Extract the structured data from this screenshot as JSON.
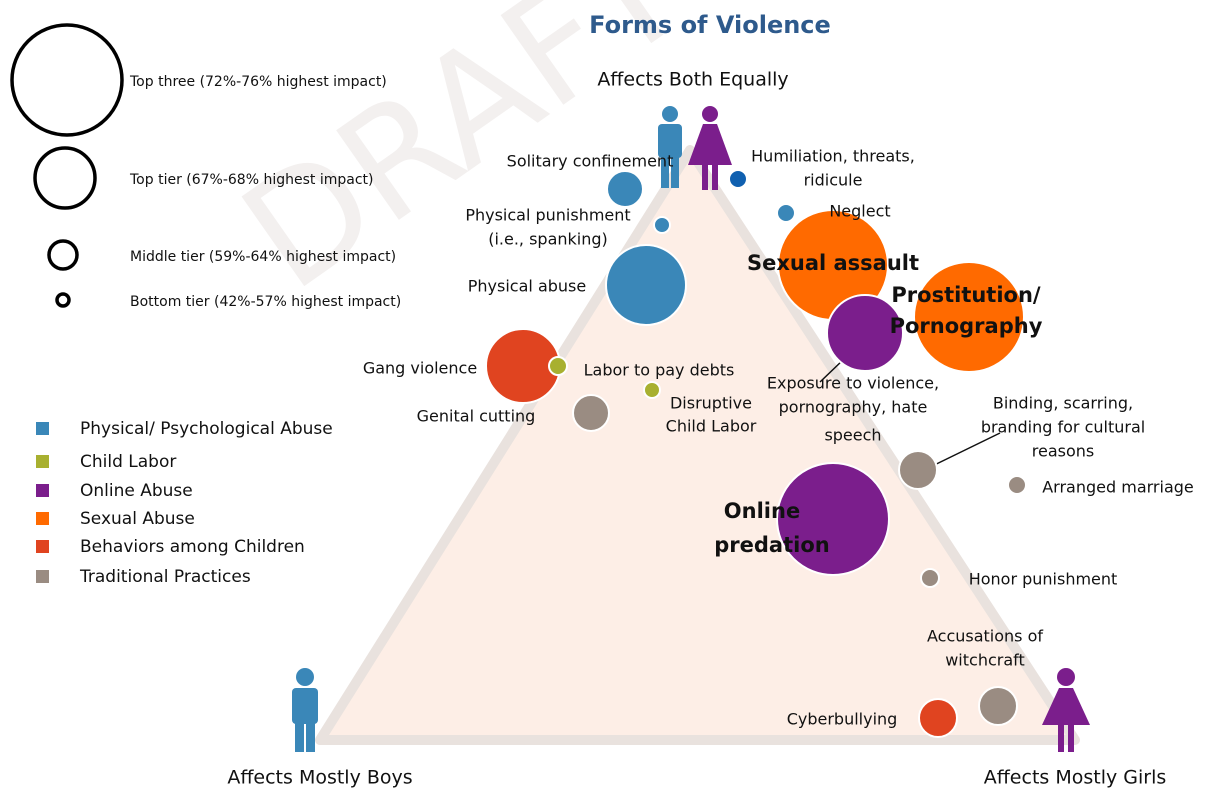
{
  "watermark": "DRAFT",
  "title": "Forms of Violence",
  "corners": {
    "top": "Affects Both Equally",
    "left": "Affects Mostly Boys",
    "right": "Affects Mostly Girls"
  },
  "size_legend": [
    "Top three (72%-76% highest impact)",
    "Top tier (67%-68% highest impact)",
    "Middle tier (59%-64% highest impact)",
    "Bottom tier (42%-57% highest impact)"
  ],
  "category_legend": [
    {
      "name": "Physical/ Psychological Abuse",
      "color": "#3a87b8"
    },
    {
      "name": "Child Labor",
      "color": "#a8b030"
    },
    {
      "name": "Online Abuse",
      "color": "#7b1e8c"
    },
    {
      "name": "Sexual Abuse",
      "color": "#ff6a00"
    },
    {
      "name": "Behaviors among Children",
      "color": "#e04420"
    },
    {
      "name": "Traditional Practices",
      "color": "#9a8c82"
    }
  ],
  "bubbles": [
    {
      "label": [
        "Solitary confinement"
      ]
    },
    {
      "label": [
        "Humiliation, threats,",
        "ridicule"
      ]
    },
    {
      "label": [
        "Physical punishment",
        "(i.e., spanking)"
      ]
    },
    {
      "label": [
        "Neglect"
      ]
    },
    {
      "label": [
        "Physical abuse"
      ]
    },
    {
      "label": [
        "Sexual assault"
      ]
    },
    {
      "label": [
        "Prostitution/",
        "Pornography"
      ]
    },
    {
      "label": [
        "Exposure to violence,",
        "pornography, hate",
        "speech"
      ]
    },
    {
      "label": [
        "Gang violence"
      ]
    },
    {
      "label": [
        "Labor to pay debts"
      ]
    },
    {
      "label": [
        "Disruptive",
        "Child Labor"
      ]
    },
    {
      "label": [
        "Genital cutting"
      ]
    },
    {
      "label": [
        "Binding, scarring,",
        "branding for cultural",
        "reasons"
      ]
    },
    {
      "label": [
        "Arranged marriage"
      ]
    },
    {
      "label": [
        "Online",
        "predation"
      ]
    },
    {
      "label": [
        "Honor punishment"
      ]
    },
    {
      "label": [
        "Accusations of",
        "witchcraft"
      ]
    },
    {
      "label": [
        "Cyberbullying"
      ]
    }
  ]
}
